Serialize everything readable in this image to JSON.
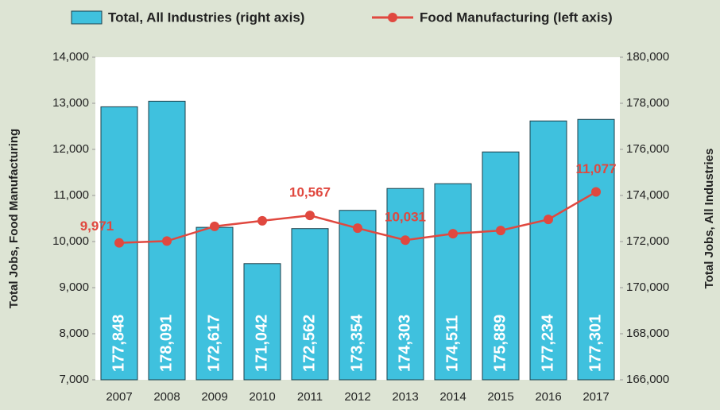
{
  "chart_data": {
    "type": "bar_line",
    "categories": [
      "2007",
      "2008",
      "2009",
      "2010",
      "2011",
      "2012",
      "2013",
      "2014",
      "2015",
      "2016",
      "2017"
    ],
    "series": [
      {
        "name": "Total, All Industries (right axis)",
        "type": "bar",
        "axis": "y2",
        "color": "#3fc1de",
        "values": [
          177848,
          178091,
          172617,
          171042,
          172562,
          173354,
          174303,
          174511,
          175889,
          177234,
          177301
        ],
        "value_labels": [
          "177,848",
          "178,091",
          "172,617",
          "171,042",
          "172,562",
          "173,354",
          "174,303",
          "174,511",
          "175,889",
          "177,234",
          "177,301"
        ]
      },
      {
        "name": "Food Manufacturing (left axis)",
        "type": "line",
        "axis": "y",
        "color": "#e0483f",
        "values": [
          9971,
          10010,
          10330,
          10450,
          10567,
          10290,
          10031,
          10170,
          10240,
          10480,
          11077
        ],
        "value_labels": [
          "9,971",
          null,
          null,
          null,
          "10,567",
          null,
          "10,031",
          null,
          null,
          null,
          "11,077"
        ]
      }
    ],
    "ylabel": "Total Jobs, Food Manufacturing",
    "y2label": "Total Jobs, All Industries",
    "ylim": [
      7000,
      14000
    ],
    "yticks": [
      {
        "value": 7000,
        "label": "7,000"
      },
      {
        "value": 8000,
        "label": "8,000"
      },
      {
        "value": 9000,
        "label": "9,000"
      },
      {
        "value": 10000,
        "label": "10,000"
      },
      {
        "value": 11000,
        "label": "11,000"
      },
      {
        "value": 12000,
        "label": "12,000"
      },
      {
        "value": 13000,
        "label": "13,000"
      },
      {
        "value": 14000,
        "label": "14,000"
      }
    ],
    "y2lim": [
      166000,
      180000
    ],
    "y2ticks": [
      {
        "value": 166000,
        "label": "166,000"
      },
      {
        "value": 168000,
        "label": "168,000"
      },
      {
        "value": 170000,
        "label": "170,000"
      },
      {
        "value": 172000,
        "label": "172,000"
      },
      {
        "value": 174000,
        "label": "174,000"
      },
      {
        "value": 176000,
        "label": "176,000"
      },
      {
        "value": 178000,
        "label": "178,000"
      },
      {
        "value": 180000,
        "label": "180,000"
      }
    ],
    "legend": "top"
  }
}
